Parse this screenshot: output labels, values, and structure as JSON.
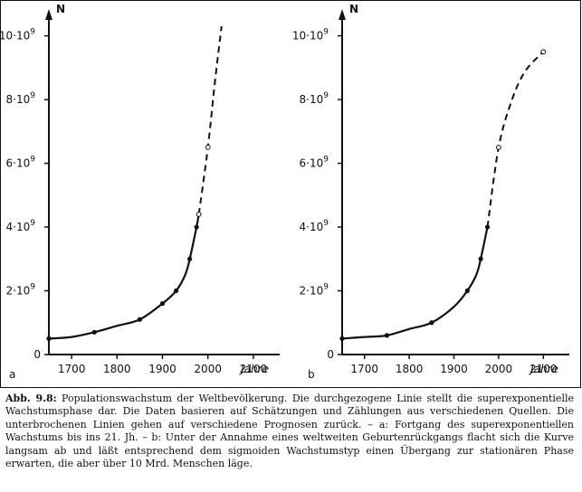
{
  "chart_data": [
    {
      "type": "line",
      "panel_label": "a",
      "ylabel": "N",
      "xlabel": "Jahre",
      "xlim": [
        1650,
        2150
      ],
      "ylim": [
        0,
        10.5
      ],
      "x_ticks": [
        1700,
        1800,
        1900,
        2000,
        2100
      ],
      "x_tick_labels": [
        "1700",
        "1800",
        "1900",
        "2000",
        "2100"
      ],
      "y_ticks": [
        0,
        2,
        4,
        6,
        8,
        10
      ],
      "y_tick_labels": [
        "0",
        "2·10",
        "4·10",
        "6·10",
        "8·10",
        "10·10"
      ],
      "y_tick_exponent": "9",
      "series": [
        {
          "style": "solid",
          "x": [
            1650,
            1700,
            1750,
            1800,
            1850,
            1900,
            1930,
            1950,
            1960,
            1975,
            1980
          ],
          "y": [
            0.5,
            0.55,
            0.7,
            0.9,
            1.1,
            1.6,
            2.0,
            2.5,
            3.0,
            4.0,
            4.4
          ]
        },
        {
          "style": "dashed",
          "x": [
            1980,
            2000,
            2015,
            2030
          ],
          "y": [
            4.4,
            6.5,
            8.5,
            10.3
          ]
        }
      ],
      "points_filled": [
        {
          "x": 1650,
          "y": 0.5
        },
        {
          "x": 1750,
          "y": 0.7
        },
        {
          "x": 1850,
          "y": 1.1
        },
        {
          "x": 1900,
          "y": 1.6
        },
        {
          "x": 1930,
          "y": 2.0
        },
        {
          "x": 1960,
          "y": 3.0
        },
        {
          "x": 1975,
          "y": 4.0
        }
      ],
      "points_open": [
        {
          "x": 1980,
          "y": 4.4
        },
        {
          "x": 2000,
          "y": 6.5
        }
      ]
    },
    {
      "type": "line",
      "panel_label": "b",
      "ylabel": "N",
      "xlabel": "Jahre",
      "xlim": [
        1650,
        2150
      ],
      "ylim": [
        0,
        10.5
      ],
      "x_ticks": [
        1700,
        1800,
        1900,
        2000,
        2100
      ],
      "x_tick_labels": [
        "1700",
        "1800",
        "1900",
        "2000",
        "2100"
      ],
      "y_ticks": [
        0,
        2,
        4,
        6,
        8,
        10
      ],
      "y_tick_labels": [
        "0",
        "2·10",
        "4·10",
        "6·10",
        "8·10",
        "10·10"
      ],
      "y_tick_exponent": "9",
      "series": [
        {
          "style": "solid",
          "x": [
            1650,
            1700,
            1750,
            1800,
            1850,
            1900,
            1930,
            1950,
            1960,
            1975
          ],
          "y": [
            0.5,
            0.55,
            0.6,
            0.8,
            1.0,
            1.5,
            2.0,
            2.5,
            3.0,
            4.0
          ]
        },
        {
          "style": "dashed",
          "x": [
            1975,
            2000,
            2030,
            2060,
            2100
          ],
          "y": [
            4.0,
            6.5,
            8.0,
            8.9,
            9.5
          ]
        }
      ],
      "points_filled": [
        {
          "x": 1650,
          "y": 0.5
        },
        {
          "x": 1750,
          "y": 0.6
        },
        {
          "x": 1850,
          "y": 1.0
        },
        {
          "x": 1930,
          "y": 2.0
        },
        {
          "x": 1960,
          "y": 3.0
        },
        {
          "x": 1975,
          "y": 4.0
        }
      ],
      "points_open": [
        {
          "x": 2000,
          "y": 6.5
        },
        {
          "x": 2100,
          "y": 9.5
        }
      ]
    }
  ],
  "caption": {
    "lead": "Abb. 9.8:",
    "text": " Populationswachstum der Weltbevölkerung. Die durchgezogene Linie stellt die superexponentielle Wachstumsphase dar. Die Daten basieren auf Schätzungen und Zählungen aus verschiedenen Quellen. Die unterbrochenen Linien gehen auf verschiedene Prognosen zurück. – a: Fortgang des superexponentiellen Wachstums bis ins 21. Jh. – b: Unter der Annahme eines weltweiten Geburtenrückgangs flacht sich die Kurve langsam ab und läßt entsprechend dem sigmoiden Wachstumstyp einen Übergang zur stationären Phase erwarten, die aber über 10 Mrd. Menschen läge."
  }
}
